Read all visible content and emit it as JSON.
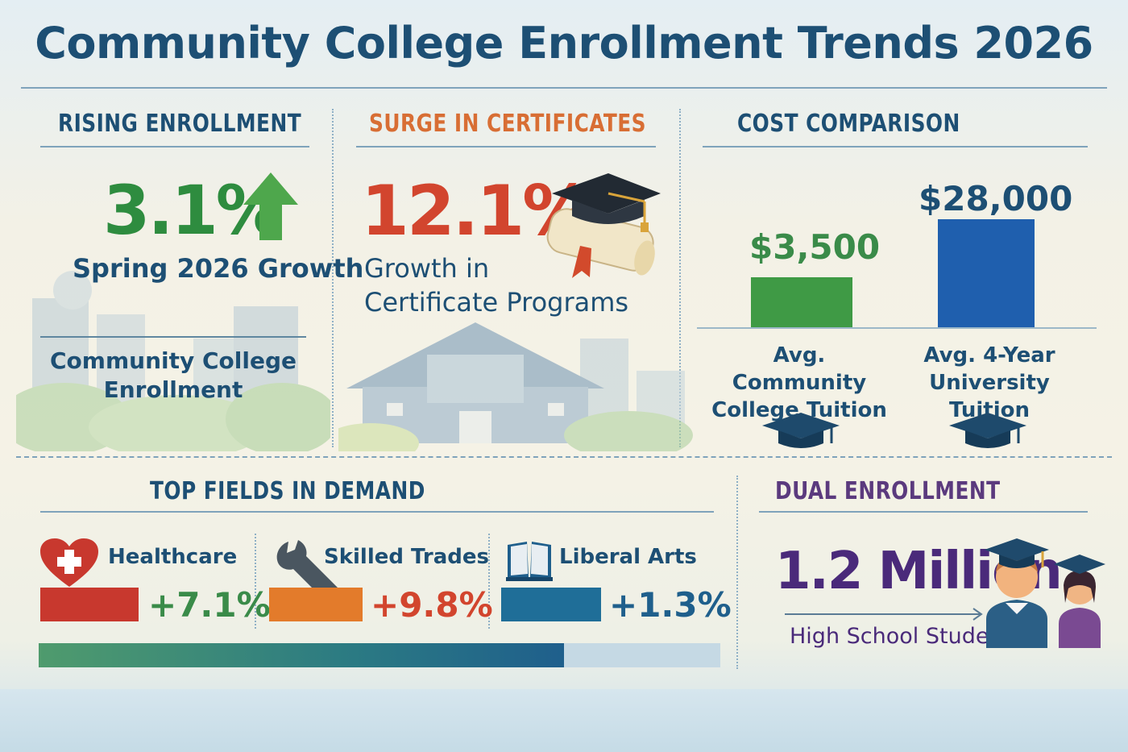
{
  "title": "Community College Enrollment Trends 2026",
  "rising": {
    "heading": "RISING ENROLLMENT",
    "value": "3.1%",
    "caption": "Spring 2026 Growth",
    "footer": "Community College Enrollment"
  },
  "certificates": {
    "heading": "SURGE IN CERTIFICATES",
    "value": "12.1%",
    "caption_line1": "Growth in",
    "caption_line2": "Certificate Programs"
  },
  "cost": {
    "heading": "COST COMPARISON",
    "items": [
      {
        "value_label": "$3,500",
        "value": 3500,
        "label_line1": "Avg. Community",
        "label_line2": "College Tuition",
        "color": "#3f9a45"
      },
      {
        "value_label": "$28,000",
        "value": 28000,
        "label_line1": "Avg. 4-Year",
        "label_line2": "University Tuition",
        "color": "#1f5fae"
      }
    ]
  },
  "fields": {
    "heading": "TOP FIELDS IN DEMAND",
    "items": [
      {
        "name": "Healthcare",
        "value": "+7.1%",
        "color": "#c8382e",
        "icon": "heart-cross-icon"
      },
      {
        "name": "Skilled Trades",
        "value": "+9.8%",
        "color": "#e37b2b",
        "icon": "wrench-icon"
      },
      {
        "name": "Liberal Arts",
        "value": "+1.3%",
        "color": "#1f6e98",
        "icon": "book-icon"
      }
    ]
  },
  "dual": {
    "heading": "DUAL ENROLLMENT",
    "value": "1.2 Million",
    "caption": "High School Students"
  },
  "colors": {
    "title": "#1d4f74",
    "rising_value": "#2e8c3f",
    "certificates_value": "#d2452e",
    "certificates_heading": "#d86e34",
    "dual_value": "#4a2a7a",
    "dual_heading": "#5b3a7e"
  }
}
